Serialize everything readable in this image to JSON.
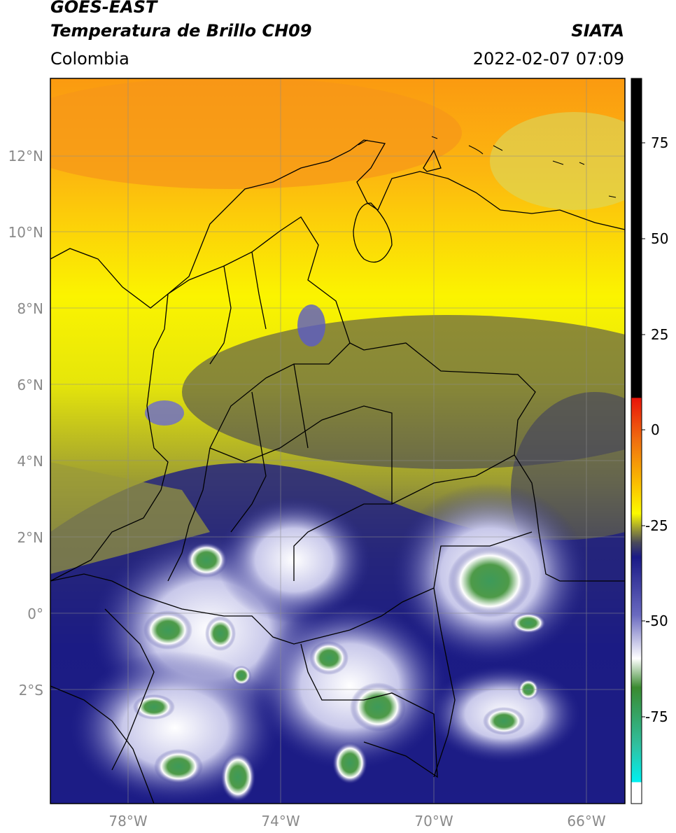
{
  "header": {
    "satellite": "GOES-EAST",
    "product": "Temperatura de Brillo CH09",
    "region": "Colombia",
    "source": "SIATA",
    "datetime": "2022-02-07 07:09"
  },
  "map": {
    "lon_range": [
      -80,
      -65
    ],
    "lat_range": [
      -5.1,
      13.9
    ],
    "gridlines": true,
    "lat_ticks": [
      {
        "value": 12,
        "label": "12°N"
      },
      {
        "value": 10,
        "label": "10°N"
      },
      {
        "value": 8,
        "label": "8°N"
      },
      {
        "value": 6,
        "label": "6°N"
      },
      {
        "value": 4,
        "label": "4°N"
      },
      {
        "value": 2,
        "label": "2°N"
      },
      {
        "value": 0,
        "label": "0°"
      },
      {
        "value": -2,
        "label": "2°S"
      }
    ],
    "lon_ticks": [
      {
        "value": -78,
        "label": "78°W"
      },
      {
        "value": -74,
        "label": "74°W"
      },
      {
        "value": -70,
        "label": "70°W"
      },
      {
        "value": -66,
        "label": "66°W"
      }
    ]
  },
  "colorbar": {
    "range": [
      -95,
      90
    ],
    "ticks": [
      {
        "value": 75,
        "label": "75"
      },
      {
        "value": 50,
        "label": "50"
      },
      {
        "value": 25,
        "label": "25"
      },
      {
        "value": 0,
        "label": "0"
      },
      {
        "value": -25,
        "label": "-25"
      },
      {
        "value": -50,
        "label": "-50"
      },
      {
        "value": -75,
        "label": "-75"
      }
    ],
    "colors": {
      "black": "#000000",
      "red": "#e8140a",
      "orange": "#fb9a10",
      "yellow": "#fbfb00",
      "olive": "#8a8a36",
      "gray": "#4a4a5a",
      "navy": "#1a1a86",
      "blue": "#2c3ca0",
      "white": "#ffffff",
      "green": "#3a8a30",
      "teal": "#30c0a0",
      "cyan": "#00f0f0"
    }
  }
}
